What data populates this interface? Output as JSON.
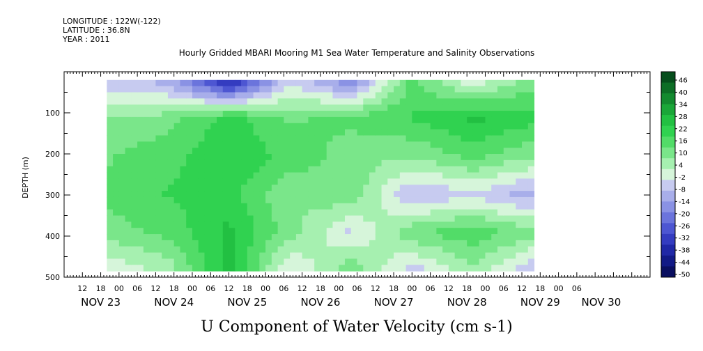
{
  "header": {
    "longitude": "LONGITUDE : 122W(-122)",
    "latitude": "LATITUDE : 36.8N",
    "year": "YEAR : 2011"
  },
  "chart_data": {
    "type": "heatmap",
    "title": "Hourly Gridded MBARI Mooring M1 Sea Water Temperature and Salinity Observations",
    "xlabel": "U Component of Water Velocity (cm s-1)",
    "ylabel": "DEPTH (m)",
    "ylim": [
      500,
      0
    ],
    "yticks": [
      100,
      200,
      300,
      400,
      500
    ],
    "x_range_hours": [
      0,
      192
    ],
    "x_hour_labels": [
      "12",
      "18",
      "00",
      "06",
      "12",
      "18",
      "00",
      "06",
      "12",
      "18",
      "00",
      "06",
      "12",
      "18",
      "00",
      "06",
      "12",
      "18",
      "00",
      "06",
      "12",
      "18",
      "00",
      "06",
      "12",
      "18",
      "00",
      "06"
    ],
    "x_date_labels": [
      "NOV 23",
      "NOV 24",
      "NOV 25",
      "NOV 26",
      "NOV 27",
      "NOV 28",
      "NOV 29",
      "NOV 30"
    ],
    "data_extent": {
      "start_hour": 14,
      "end_hour": 153,
      "depth_min": 20,
      "depth_max": 485
    },
    "colorbar": {
      "labels": [
        "46",
        "40",
        "34",
        "28",
        "22",
        "16",
        "10",
        "4",
        "-2",
        "-8",
        "-14",
        "-20",
        "-26",
        "-32",
        "-38",
        "-44",
        "-50"
      ],
      "colors": [
        "#064e1c",
        "#0d6e26",
        "#138a2f",
        "#1aa638",
        "#22c042",
        "#30d250",
        "#52dc68",
        "#7ae68a",
        "#a6f0b0",
        "#d6f5da",
        "#c7cbf0",
        "#a8aeea",
        "#8a92e4",
        "#6b74dc",
        "#4d56d2",
        "#343cc0",
        "#2028a6",
        "#121a86",
        "#0a0f60"
      ]
    },
    "series": [
      {
        "hour": 14,
        "depth_profile": [
          -8,
          6,
          10,
          12,
          8,
          -4
        ]
      },
      {
        "hour": 34,
        "depth_profile": [
          -12,
          8,
          14,
          16,
          12,
          2
        ]
      },
      {
        "hour": 54,
        "depth_profile": [
          -40,
          18,
          20,
          18,
          22,
          24
        ]
      },
      {
        "hour": 74,
        "depth_profile": [
          -6,
          10,
          14,
          6,
          8,
          -6
        ]
      },
      {
        "hour": 94,
        "depth_profile": [
          -20,
          12,
          8,
          10,
          -6,
          10
        ]
      },
      {
        "hour": 114,
        "depth_profile": [
          12,
          16,
          6,
          -10,
          10,
          -8
        ]
      },
      {
        "hour": 134,
        "depth_profile": [
          -4,
          22,
          12,
          -6,
          14,
          4
        ]
      },
      {
        "hour": 153,
        "depth_profile": [
          8,
          18,
          6,
          -12,
          8,
          -10
        ]
      }
    ]
  }
}
